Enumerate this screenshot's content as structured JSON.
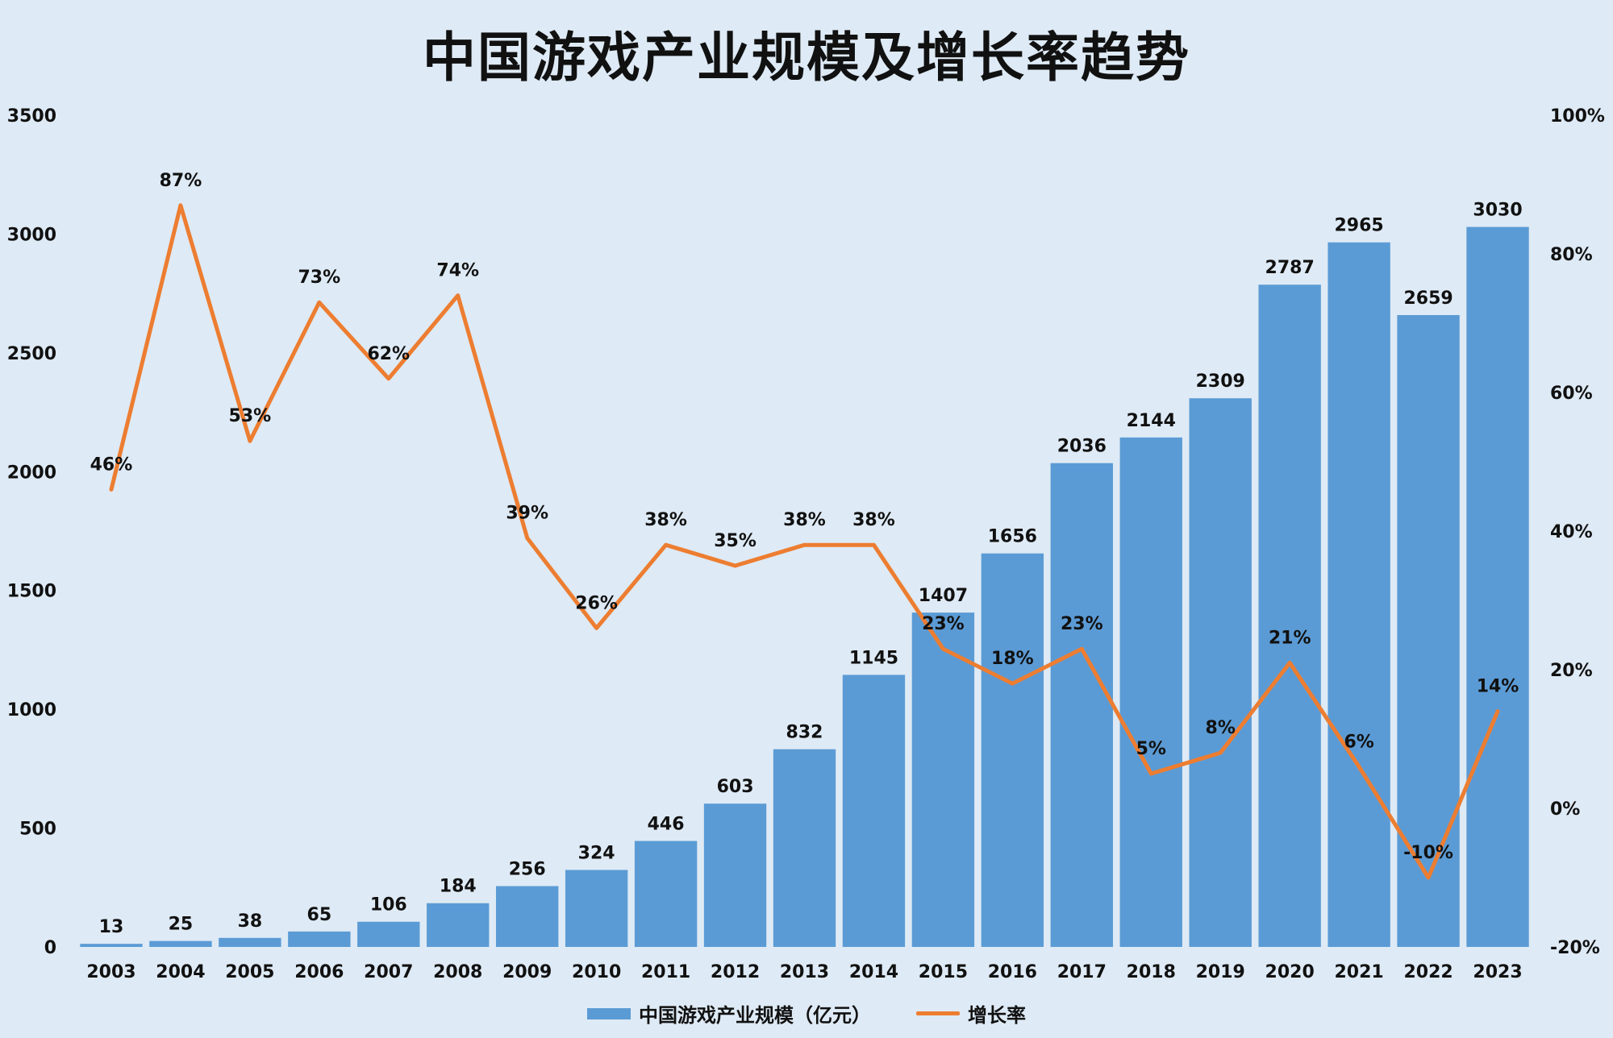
{
  "chart_data": {
    "type": "bar",
    "title": "中国游戏产业规模及增长率趋势",
    "categories": [
      "2003",
      "2004",
      "2005",
      "2006",
      "2007",
      "2008",
      "2009",
      "2010",
      "2011",
      "2012",
      "2013",
      "2014",
      "2015",
      "2016",
      "2017",
      "2018",
      "2019",
      "2020",
      "2021",
      "2022",
      "2023"
    ],
    "series": [
      {
        "name": "中国游戏产业规模（亿元）",
        "type": "bar",
        "axis": "left",
        "color": "#5b9bd5",
        "values": [
          13,
          25,
          38,
          65,
          106,
          184,
          256,
          324,
          446,
          603,
          832,
          1145,
          1407,
          1656,
          2036,
          2144,
          2309,
          2787,
          2965,
          2659,
          3030
        ]
      },
      {
        "name": "增长率",
        "type": "line",
        "axis": "right",
        "color": "#ed7d31",
        "values": [
          46,
          87,
          53,
          73,
          62,
          74,
          39,
          26,
          38,
          35,
          38,
          38,
          23,
          18,
          23,
          5,
          8,
          21,
          6,
          -10,
          14
        ],
        "labels": [
          "46%",
          "87%",
          "53%",
          "73%",
          "62%",
          "74%",
          "39%",
          "26%",
          "38%",
          "35%",
          "38%",
          "38%",
          "23%",
          "18%",
          "23%",
          "5%",
          "8%",
          "21%",
          "6%",
          "-10%",
          "14%"
        ]
      }
    ],
    "y_left": {
      "min": 0,
      "max": 3500,
      "ticks": [
        0,
        500,
        1000,
        1500,
        2000,
        2500,
        3000,
        3500
      ],
      "tick_labels": [
        "0",
        "500",
        "1000",
        "1500",
        "2000",
        "2500",
        "3000",
        "3500"
      ]
    },
    "y_right": {
      "min": -20,
      "max": 100,
      "ticks": [
        -20,
        0,
        20,
        40,
        60,
        80,
        100
      ],
      "tick_labels": [
        "-20%",
        "0%",
        "20%",
        "40%",
        "60%",
        "80%",
        "100%"
      ]
    },
    "grid": false,
    "legend_position": "bottom"
  }
}
